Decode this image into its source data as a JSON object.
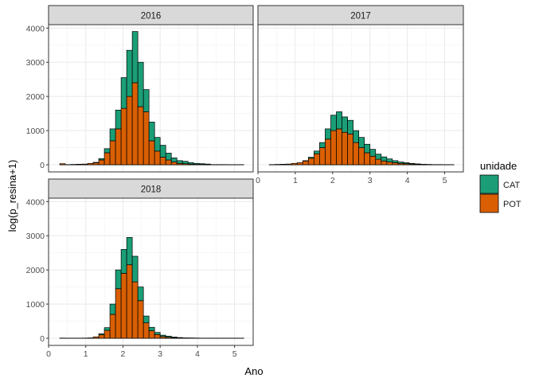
{
  "chart_data": {
    "type": "bar",
    "subtype": "stacked-histogram-facets",
    "xlabel": "Ano",
    "ylabel": "log(p_resina+1)",
    "xticks": [
      "0",
      "1",
      "2",
      "3",
      "4",
      "5"
    ],
    "yticks": [
      "0",
      "1000",
      "2000",
      "3000",
      "4000"
    ],
    "xlim": [
      0,
      5.5
    ],
    "ylim": [
      0,
      4100
    ],
    "bin_width": 0.15,
    "grid": true,
    "legend": {
      "title": "unidade",
      "position": "right",
      "items": [
        {
          "name": "CAT",
          "color": "#1b9e77"
        },
        {
          "name": "POT",
          "color": "#d95f02"
        }
      ]
    },
    "facets": [
      {
        "label": "2016",
        "x_ticks_shown": false,
        "bins": [
          {
            "x0": 0.3,
            "cat": 0,
            "pot": 30
          },
          {
            "x0": 0.45,
            "cat": 0,
            "pot": 5
          },
          {
            "x0": 0.6,
            "cat": 0,
            "pot": 10
          },
          {
            "x0": 0.75,
            "cat": 0,
            "pot": 15
          },
          {
            "x0": 0.9,
            "cat": 0,
            "pot": 20
          },
          {
            "x0": 1.05,
            "cat": 0,
            "pot": 40
          },
          {
            "x0": 1.2,
            "cat": 10,
            "pot": 60
          },
          {
            "x0": 1.35,
            "cat": 40,
            "pot": 140
          },
          {
            "x0": 1.5,
            "cat": 120,
            "pot": 350
          },
          {
            "x0": 1.65,
            "cat": 350,
            "pot": 700
          },
          {
            "x0": 1.8,
            "cat": 550,
            "pot": 1050
          },
          {
            "x0": 1.95,
            "cat": 900,
            "pot": 1650
          },
          {
            "x0": 2.1,
            "cat": 1350,
            "pot": 2000
          },
          {
            "x0": 2.25,
            "cat": 1500,
            "pot": 2400
          },
          {
            "x0": 2.4,
            "cat": 1300,
            "pot": 1700
          },
          {
            "x0": 2.55,
            "cat": 650,
            "pot": 1550
          },
          {
            "x0": 2.7,
            "cat": 550,
            "pot": 700
          },
          {
            "x0": 2.85,
            "cat": 400,
            "pot": 400
          },
          {
            "x0": 3.0,
            "cat": 350,
            "pot": 220
          },
          {
            "x0": 3.15,
            "cat": 200,
            "pot": 140
          },
          {
            "x0": 3.3,
            "cat": 120,
            "pot": 80
          },
          {
            "x0": 3.45,
            "cat": 80,
            "pot": 40
          },
          {
            "x0": 3.6,
            "cat": 70,
            "pot": 30
          },
          {
            "x0": 3.75,
            "cat": 40,
            "pot": 20
          },
          {
            "x0": 3.9,
            "cat": 30,
            "pot": 10
          },
          {
            "x0": 4.05,
            "cat": 20,
            "pot": 10
          },
          {
            "x0": 4.2,
            "cat": 10,
            "pot": 10
          },
          {
            "x0": 4.35,
            "cat": 0,
            "pot": 5
          },
          {
            "x0": 4.5,
            "cat": 0,
            "pot": 5
          },
          {
            "x0": 4.65,
            "cat": 0,
            "pot": 5
          },
          {
            "x0": 4.8,
            "cat": 0,
            "pot": 3
          },
          {
            "x0": 4.95,
            "cat": 0,
            "pot": 3
          },
          {
            "x0": 5.1,
            "cat": 0,
            "pot": 3
          }
        ]
      },
      {
        "label": "2017",
        "x_ticks_shown": true,
        "bins": [
          {
            "x0": 0.3,
            "cat": 0,
            "pot": 5
          },
          {
            "x0": 0.45,
            "cat": 0,
            "pot": 10
          },
          {
            "x0": 0.6,
            "cat": 0,
            "pot": 15
          },
          {
            "x0": 0.75,
            "cat": 0,
            "pot": 20
          },
          {
            "x0": 0.9,
            "cat": 0,
            "pot": 40
          },
          {
            "x0": 1.05,
            "cat": 0,
            "pot": 60
          },
          {
            "x0": 1.2,
            "cat": 10,
            "pot": 110
          },
          {
            "x0": 1.35,
            "cat": 30,
            "pot": 190
          },
          {
            "x0": 1.5,
            "cat": 80,
            "pot": 320
          },
          {
            "x0": 1.65,
            "cat": 150,
            "pot": 500
          },
          {
            "x0": 1.8,
            "cat": 300,
            "pot": 750
          },
          {
            "x0": 1.95,
            "cat": 450,
            "pot": 1000
          },
          {
            "x0": 2.1,
            "cat": 500,
            "pot": 1050
          },
          {
            "x0": 2.25,
            "cat": 450,
            "pot": 950
          },
          {
            "x0": 2.4,
            "cat": 400,
            "pot": 900
          },
          {
            "x0": 2.55,
            "cat": 350,
            "pot": 650
          },
          {
            "x0": 2.7,
            "cat": 300,
            "pot": 500
          },
          {
            "x0": 2.85,
            "cat": 250,
            "pot": 350
          },
          {
            "x0": 3.0,
            "cat": 200,
            "pot": 250
          },
          {
            "x0": 3.15,
            "cat": 150,
            "pot": 160
          },
          {
            "x0": 3.3,
            "cat": 120,
            "pot": 110
          },
          {
            "x0": 3.45,
            "cat": 90,
            "pot": 80
          },
          {
            "x0": 3.6,
            "cat": 60,
            "pot": 60
          },
          {
            "x0": 3.75,
            "cat": 40,
            "pot": 40
          },
          {
            "x0": 3.9,
            "cat": 30,
            "pot": 30
          },
          {
            "x0": 4.05,
            "cat": 20,
            "pot": 20
          },
          {
            "x0": 4.2,
            "cat": 10,
            "pot": 15
          },
          {
            "x0": 4.35,
            "cat": 5,
            "pot": 10
          },
          {
            "x0": 4.5,
            "cat": 0,
            "pot": 10
          },
          {
            "x0": 4.65,
            "cat": 0,
            "pot": 5
          },
          {
            "x0": 4.8,
            "cat": 0,
            "pot": 5
          },
          {
            "x0": 4.95,
            "cat": 0,
            "pot": 3
          },
          {
            "x0": 5.1,
            "cat": 0,
            "pot": 3
          }
        ]
      },
      {
        "label": "2018",
        "x_ticks_shown": true,
        "bins": [
          {
            "x0": 0.3,
            "cat": 0,
            "pot": 5
          },
          {
            "x0": 0.45,
            "cat": 0,
            "pot": 3
          },
          {
            "x0": 0.6,
            "cat": 0,
            "pot": 3
          },
          {
            "x0": 0.75,
            "cat": 0,
            "pot": 3
          },
          {
            "x0": 0.9,
            "cat": 0,
            "pot": 5
          },
          {
            "x0": 1.05,
            "cat": 0,
            "pot": 10
          },
          {
            "x0": 1.2,
            "cat": 0,
            "pot": 40
          },
          {
            "x0": 1.35,
            "cat": 30,
            "pot": 100
          },
          {
            "x0": 1.5,
            "cat": 80,
            "pot": 230
          },
          {
            "x0": 1.65,
            "cat": 300,
            "pot": 700
          },
          {
            "x0": 1.8,
            "cat": 550,
            "pot": 1450
          },
          {
            "x0": 1.95,
            "cat": 700,
            "pot": 1900
          },
          {
            "x0": 2.1,
            "cat": 800,
            "pot": 2150
          },
          {
            "x0": 2.25,
            "cat": 750,
            "pot": 1650
          },
          {
            "x0": 2.4,
            "cat": 400,
            "pot": 1100
          },
          {
            "x0": 2.55,
            "cat": 200,
            "pot": 450
          },
          {
            "x0": 2.7,
            "cat": 100,
            "pot": 220
          },
          {
            "x0": 2.85,
            "cat": 60,
            "pot": 110
          },
          {
            "x0": 3.0,
            "cat": 40,
            "pot": 50
          },
          {
            "x0": 3.15,
            "cat": 30,
            "pot": 30
          },
          {
            "x0": 3.3,
            "cat": 20,
            "pot": 15
          },
          {
            "x0": 3.45,
            "cat": 10,
            "pot": 10
          },
          {
            "x0": 3.6,
            "cat": 5,
            "pot": 5
          },
          {
            "x0": 3.75,
            "cat": 3,
            "pot": 5
          },
          {
            "x0": 3.9,
            "cat": 3,
            "pot": 3
          },
          {
            "x0": 4.05,
            "cat": 0,
            "pot": 3
          },
          {
            "x0": 4.2,
            "cat": 0,
            "pot": 3
          },
          {
            "x0": 4.35,
            "cat": 0,
            "pot": 3
          },
          {
            "x0": 4.5,
            "cat": 0,
            "pot": 3
          },
          {
            "x0": 4.65,
            "cat": 0,
            "pot": 3
          },
          {
            "x0": 4.8,
            "cat": 0,
            "pot": 3
          },
          {
            "x0": 4.95,
            "cat": 0,
            "pot": 3
          },
          {
            "x0": 5.1,
            "cat": 0,
            "pot": 3
          }
        ]
      }
    ]
  }
}
